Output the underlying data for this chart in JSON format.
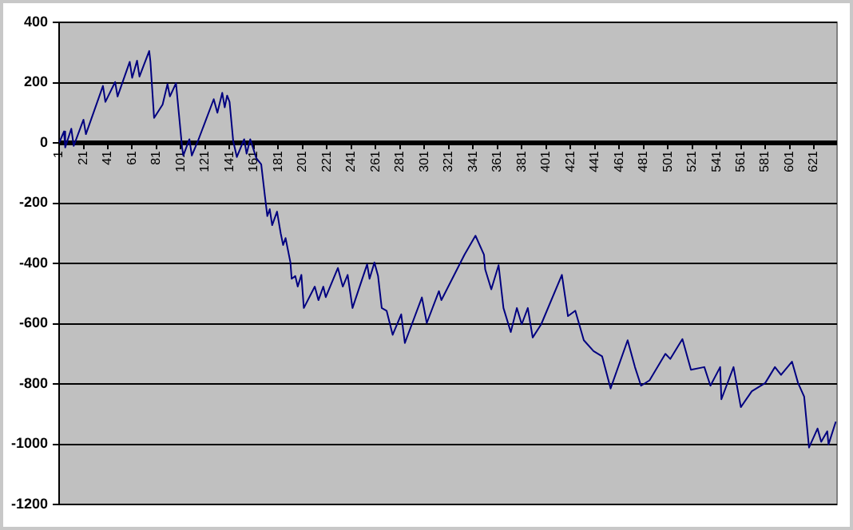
{
  "chart_data": {
    "type": "line",
    "x": [
      1,
      5,
      6,
      11,
      13,
      21,
      23,
      37,
      39,
      47,
      49,
      59,
      61,
      65,
      67,
      75,
      76,
      79,
      86,
      90,
      92,
      97,
      102,
      103,
      108,
      110,
      115,
      128,
      131,
      135,
      137,
      139,
      141,
      144,
      147,
      153,
      155,
      158,
      163,
      167,
      170,
      172,
      174,
      176,
      180,
      183,
      185,
      187,
      191,
      192,
      195,
      197,
      200,
      202,
      211,
      214,
      218,
      220,
      230,
      234,
      238,
      242,
      254,
      256,
      260,
      263,
      266,
      270,
      275,
      282,
      285,
      299,
      303,
      313,
      315,
      334,
      343,
      350,
      351,
      356,
      362,
      366,
      372,
      377,
      381,
      386,
      390,
      397,
      414,
      419,
      425,
      432,
      440,
      447,
      454,
      468,
      474,
      479,
      486,
      499,
      503,
      513,
      520,
      531,
      536,
      544,
      545,
      555,
      561,
      570,
      581,
      589,
      594,
      603,
      608,
      613,
      617,
      624,
      627,
      632,
      633,
      639
    ],
    "series": [
      {
        "color": "#000080",
        "values": [
          0,
          38,
          -15,
          47,
          -10,
          77,
          29,
          189,
          136,
          202,
          154,
          269,
          216,
          273,
          220,
          305,
          269,
          83,
          127,
          195,
          154,
          198,
          -15,
          -42,
          12,
          -42,
          6,
          145,
          100,
          166,
          118,
          157,
          136,
          6,
          -47,
          12,
          -36,
          12,
          -51,
          -71,
          -175,
          -243,
          -220,
          -273,
          -228,
          -300,
          -339,
          -316,
          -397,
          -451,
          -442,
          -477,
          -438,
          -548,
          -477,
          -522,
          -477,
          -512,
          -415,
          -477,
          -438,
          -548,
          -403,
          -451,
          -397,
          -442,
          -548,
          -557,
          -637,
          -569,
          -664,
          -513,
          -598,
          -492,
          -522,
          -371,
          -308,
          -371,
          -420,
          -486,
          -406,
          -548,
          -628,
          -548,
          -602,
          -548,
          -646,
          -602,
          -438,
          -575,
          -557,
          -655,
          -691,
          -708,
          -815,
          -655,
          -744,
          -806,
          -788,
          -700,
          -717,
          -651,
          -753,
          -744,
          -806,
          -744,
          -851,
          -744,
          -877,
          -824,
          -797,
          -744,
          -770,
          -726,
          -797,
          -842,
          -1011,
          -948,
          -992,
          -957,
          -1001,
          -925
        ]
      }
    ],
    "xlim": [
      1,
      640
    ],
    "xticks": [
      1,
      21,
      41,
      61,
      81,
      101,
      121,
      141,
      161,
      181,
      201,
      221,
      241,
      261,
      281,
      301,
      321,
      341,
      361,
      381,
      401,
      421,
      441,
      461,
      481,
      501,
      521,
      541,
      561,
      581,
      601,
      621
    ],
    "ylim": [
      -1200,
      400
    ],
    "yticks": [
      -1200,
      -1000,
      -800,
      -600,
      -400,
      -200,
      0,
      200,
      400
    ],
    "grid": "y",
    "legend": false,
    "marker": "none",
    "line_style": "solid"
  }
}
